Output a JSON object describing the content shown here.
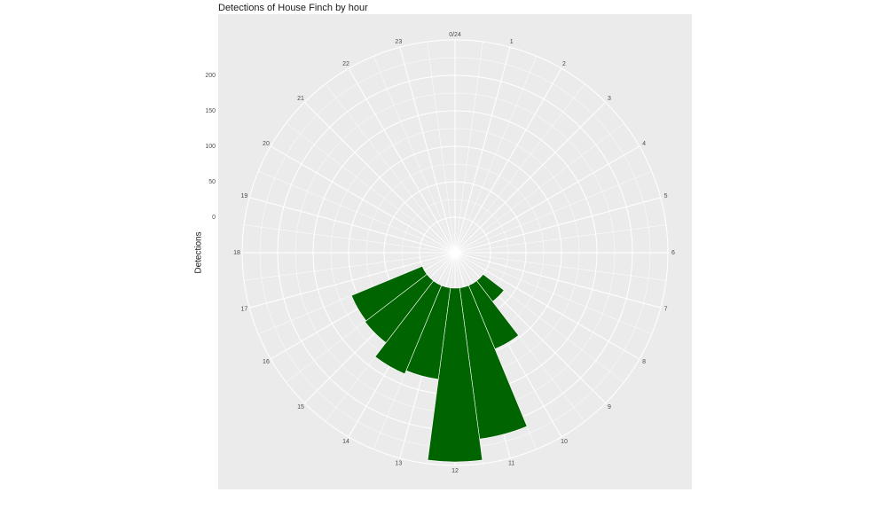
{
  "chart_data": {
    "type": "bar",
    "coord": "polar",
    "title": "Detections of House Finch by hour",
    "xlabel": "",
    "ylabel": "Detections",
    "angle_ticks": [
      "0/24",
      "1",
      "2",
      "3",
      "4",
      "5",
      "6",
      "7",
      "8",
      "9",
      "10",
      "11",
      "12",
      "13",
      "14",
      "15",
      "16",
      "17",
      "18",
      "19",
      "20",
      "21",
      "22",
      "23"
    ],
    "radial_ticks": [
      0,
      50,
      100,
      150,
      200
    ],
    "ylim": [
      -50,
      250
    ],
    "categories": [
      9,
      10,
      11,
      12,
      13,
      14,
      15,
      16
    ],
    "values": [
      37,
      97,
      215,
      245,
      130,
      135,
      110,
      108
    ],
    "bar_color": "#006400",
    "background": "#ebebeb",
    "grid_color": "#ffffff",
    "grid": true,
    "legend": "none"
  }
}
